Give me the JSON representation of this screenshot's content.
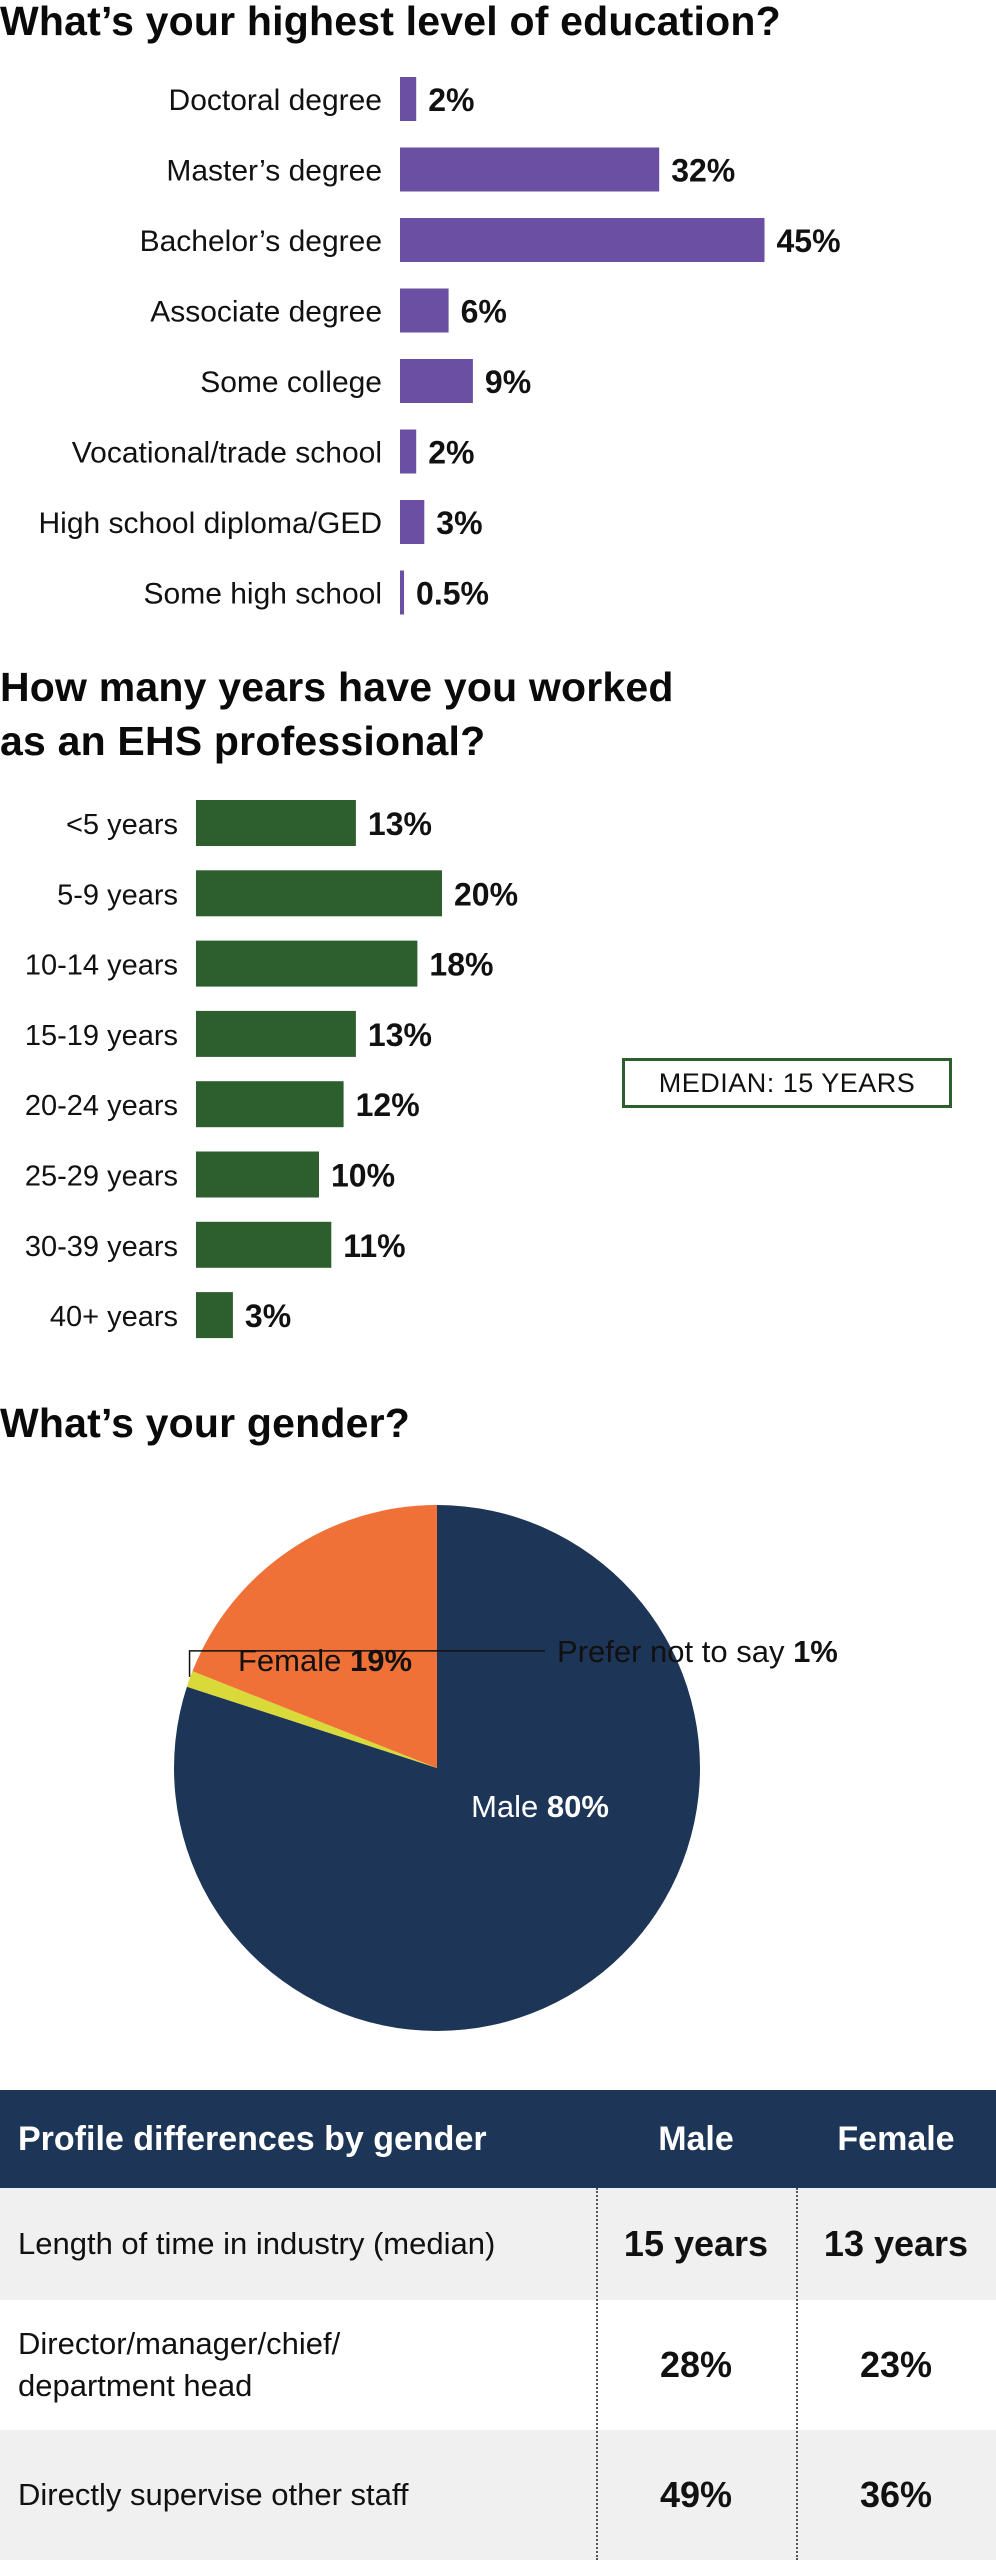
{
  "education": {
    "heading": "What’s your highest level of education?",
    "chart_data": {
      "type": "bar",
      "orientation": "horizontal",
      "categories": [
        "Doctoral degree",
        "Master’s degree",
        "Bachelor’s degree",
        "Associate degree",
        "Some college",
        "Vocational/trade school",
        "High school diploma/GED",
        "Some high school"
      ],
      "values": [
        2,
        32,
        45,
        6,
        9,
        2,
        3,
        0.5
      ],
      "labels": [
        "2%",
        "32%",
        "45%",
        "6%",
        "9%",
        "2%",
        "3%",
        "0.5%"
      ],
      "color": "#6a4fa3"
    }
  },
  "experience": {
    "heading_line1": "How many years have you worked",
    "heading_line2": "as an EHS professional?",
    "median_label": "MEDIAN: 15 YEARS",
    "chart_data": {
      "type": "bar",
      "orientation": "horizontal",
      "categories": [
        "<5 years",
        "5-9 years",
        "10-14 years",
        "15-19 years",
        "20-24 years",
        "25-29 years",
        "30-39 years",
        "40+ years"
      ],
      "values": [
        13,
        20,
        18,
        13,
        12,
        10,
        11,
        3
      ],
      "labels": [
        "13%",
        "20%",
        "18%",
        "13%",
        "12%",
        "10%",
        "11%",
        "3%"
      ],
      "color": "#2d5e2e"
    }
  },
  "gender": {
    "heading": "What’s your gender?",
    "chart_data": {
      "type": "pie",
      "slices": [
        {
          "name": "Male",
          "value": 80,
          "label": "80%",
          "color": "#1d3557"
        },
        {
          "name": "Prefer not to say",
          "value": 1,
          "label": "1%",
          "color": "#d9d93a"
        },
        {
          "name": "Female",
          "value": 19,
          "label": "19%",
          "color": "#f07137"
        }
      ]
    }
  },
  "table": {
    "headers": [
      "Profile differences by gender",
      "Male",
      "Female"
    ],
    "rows": [
      {
        "label": "Length of time in industry (median)",
        "male": "15 years",
        "female": "13 years"
      },
      {
        "label": "Director/manager/chief/ department head",
        "male": "28%",
        "female": "23%"
      },
      {
        "label": "Directly supervise other staff",
        "male": "49%",
        "female": "36%"
      }
    ]
  }
}
